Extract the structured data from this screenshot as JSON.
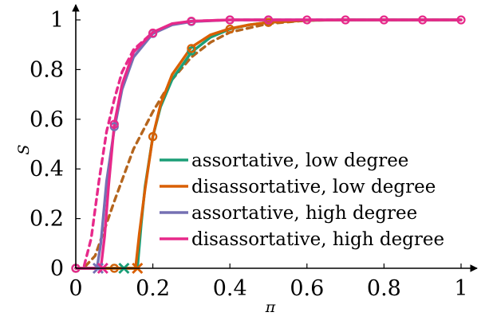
{
  "chart_data": {
    "type": "line",
    "xlabel": "π",
    "ylabel": "S",
    "xlim": [
      0,
      1
    ],
    "ylim": [
      0,
      1
    ],
    "x_ticks": [
      "0",
      "0.2",
      "0.4",
      "0.6",
      "0.8",
      "1"
    ],
    "y_ticks": [
      "0",
      "0.2",
      "0.4",
      "0.6",
      "0.8",
      "1"
    ],
    "legend_position": "bottom-right",
    "series": [
      {
        "name": "assortative, low degree",
        "color": "#1b9e77",
        "style": "solid",
        "curve": [
          [
            0,
            0
          ],
          [
            0.15,
            0
          ],
          [
            0.16,
            0
          ],
          [
            0.17,
            0.18
          ],
          [
            0.18,
            0.33
          ],
          [
            0.2,
            0.53
          ],
          [
            0.22,
            0.65
          ],
          [
            0.25,
            0.76
          ],
          [
            0.3,
            0.87
          ],
          [
            0.35,
            0.93
          ],
          [
            0.4,
            0.963
          ],
          [
            0.45,
            0.98
          ],
          [
            0.5,
            0.99
          ],
          [
            0.6,
            0.998
          ],
          [
            0.7,
            1
          ],
          [
            1,
            1
          ]
        ],
        "markers": [
          [
            0,
            0
          ],
          [
            0.1,
            0
          ],
          [
            0.2,
            0.53
          ],
          [
            0.3,
            0.875
          ],
          [
            0.4,
            0.963
          ],
          [
            0.5,
            0.99
          ]
        ],
        "threshold": 0.125
      },
      {
        "name": "disassortative, low degree",
        "color": "#d95f02",
        "style": "solid",
        "curve": [
          [
            0,
            0
          ],
          [
            0.155,
            0
          ],
          [
            0.165,
            0.14
          ],
          [
            0.18,
            0.32
          ],
          [
            0.2,
            0.53
          ],
          [
            0.22,
            0.66
          ],
          [
            0.25,
            0.78
          ],
          [
            0.3,
            0.89
          ],
          [
            0.35,
            0.94
          ],
          [
            0.4,
            0.965
          ],
          [
            0.45,
            0.98
          ],
          [
            0.5,
            0.99
          ],
          [
            0.6,
            0.998
          ],
          [
            0.7,
            1
          ],
          [
            1,
            1
          ]
        ],
        "markers": [
          [
            0,
            0
          ],
          [
            0.1,
            0
          ],
          [
            0.2,
            0.53
          ],
          [
            0.3,
            0.885
          ],
          [
            0.4,
            0.963
          ],
          [
            0.5,
            0.99
          ]
        ],
        "threshold": 0.16
      },
      {
        "name": "disassortative, low degree",
        "color": "#b5651d",
        "style": "dashed",
        "curve": [
          [
            0,
            0
          ],
          [
            0.02,
            0
          ],
          [
            0.05,
            0.05
          ],
          [
            0.08,
            0.18
          ],
          [
            0.1,
            0.27
          ],
          [
            0.15,
            0.48
          ],
          [
            0.2,
            0.63
          ],
          [
            0.25,
            0.76
          ],
          [
            0.3,
            0.85
          ],
          [
            0.35,
            0.91
          ],
          [
            0.4,
            0.95
          ],
          [
            0.5,
            0.985
          ],
          [
            0.6,
            0.998
          ],
          [
            0.7,
            1
          ],
          [
            1,
            1
          ]
        ],
        "markers": []
      },
      {
        "name": "assortative, high degree",
        "color": "#7570b3",
        "style": "solid",
        "curve": [
          [
            0,
            0
          ],
          [
            0.055,
            0
          ],
          [
            0.065,
            0.1
          ],
          [
            0.08,
            0.35
          ],
          [
            0.1,
            0.56
          ],
          [
            0.12,
            0.72
          ],
          [
            0.15,
            0.85
          ],
          [
            0.2,
            0.945
          ],
          [
            0.25,
            0.98
          ],
          [
            0.3,
            0.993
          ],
          [
            0.4,
            1
          ],
          [
            1,
            1
          ]
        ],
        "markers": [
          [
            0,
            0
          ],
          [
            0.1,
            0.57
          ],
          [
            0.2,
            0.945
          ],
          [
            0.3,
            0.993
          ],
          [
            0.4,
            1
          ],
          [
            0.5,
            1
          ]
        ],
        "threshold": 0.058
      },
      {
        "name": "disassortative, high degree",
        "color": "#e7298a",
        "style": "solid",
        "curve": [
          [
            0,
            0
          ],
          [
            0.065,
            0
          ],
          [
            0.075,
            0.13
          ],
          [
            0.085,
            0.33
          ],
          [
            0.1,
            0.58
          ],
          [
            0.12,
            0.74
          ],
          [
            0.15,
            0.87
          ],
          [
            0.2,
            0.95
          ],
          [
            0.25,
            0.985
          ],
          [
            0.3,
            0.995
          ],
          [
            0.4,
            1
          ],
          [
            1,
            1
          ]
        ],
        "markers": [
          [
            0,
            0
          ],
          [
            0.1,
            0.58
          ],
          [
            0.2,
            0.947
          ],
          [
            0.3,
            0.995
          ],
          [
            0.4,
            1
          ],
          [
            0.5,
            1
          ],
          [
            0.6,
            1
          ],
          [
            0.7,
            1
          ],
          [
            0.8,
            1
          ],
          [
            0.9,
            1
          ],
          [
            1,
            1
          ]
        ],
        "threshold": 0.07
      },
      {
        "name": "disassortative, high degree",
        "color": "#e7298a",
        "style": "dashed",
        "curve": [
          [
            0,
            0
          ],
          [
            0.02,
            0
          ],
          [
            0.04,
            0.12
          ],
          [
            0.06,
            0.35
          ],
          [
            0.08,
            0.55
          ],
          [
            0.1,
            0.68
          ],
          [
            0.12,
            0.79
          ],
          [
            0.15,
            0.88
          ],
          [
            0.2,
            0.95
          ],
          [
            0.25,
            0.983
          ],
          [
            0.3,
            0.995
          ],
          [
            0.4,
            1
          ],
          [
            1,
            1
          ]
        ],
        "markers": []
      }
    ],
    "legend": [
      {
        "label": "assortative, low degree",
        "color": "#1b9e77"
      },
      {
        "label": "disassortative, low degree",
        "color": "#d95f02"
      },
      {
        "label": "assortative, high degree",
        "color": "#7570b3"
      },
      {
        "label": "disassortative, high degree",
        "color": "#e7298a"
      }
    ]
  }
}
